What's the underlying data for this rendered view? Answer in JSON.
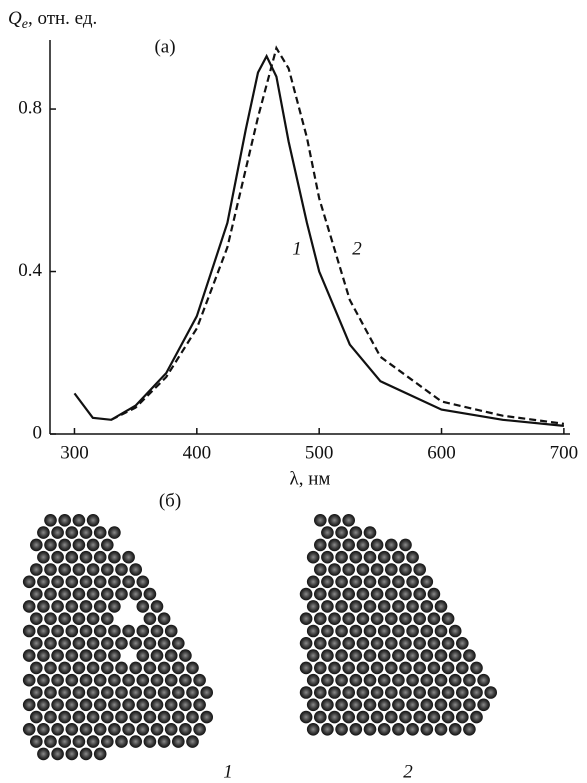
{
  "chart_data": {
    "type": "line",
    "panel_label": "(а)",
    "y_label": {
      "symbol": "Q",
      "subscript": "e",
      "unit": ", отн. ед."
    },
    "x_label": "λ, нм",
    "xlim": [
      280,
      705
    ],
    "xticks": [
      300,
      400,
      500,
      600,
      700
    ],
    "ylim": [
      0,
      0.97
    ],
    "yticks": [
      0,
      0.4,
      0.8
    ],
    "grid": false,
    "series": [
      {
        "name": "1",
        "color": "#111111",
        "dash": "solid",
        "x": [
          300,
          315,
          330,
          350,
          375,
          400,
          425,
          440,
          450,
          457,
          465,
          475,
          490,
          500,
          525,
          550,
          600,
          650,
          700
        ],
        "values": [
          0.1,
          0.04,
          0.035,
          0.07,
          0.15,
          0.29,
          0.52,
          0.75,
          0.89,
          0.93,
          0.88,
          0.72,
          0.52,
          0.4,
          0.22,
          0.13,
          0.06,
          0.035,
          0.02
        ]
      },
      {
        "name": "2",
        "color": "#111111",
        "dash": "dashed",
        "x": [
          330,
          350,
          375,
          400,
          425,
          450,
          465,
          475,
          490,
          500,
          525,
          550,
          600,
          650,
          700
        ],
        "values": [
          0.035,
          0.065,
          0.14,
          0.26,
          0.46,
          0.78,
          0.95,
          0.9,
          0.73,
          0.58,
          0.33,
          0.19,
          0.08,
          0.045,
          0.025
        ]
      }
    ]
  },
  "panel_b": {
    "label": "(б)",
    "arrays": [
      "1",
      "2"
    ]
  }
}
